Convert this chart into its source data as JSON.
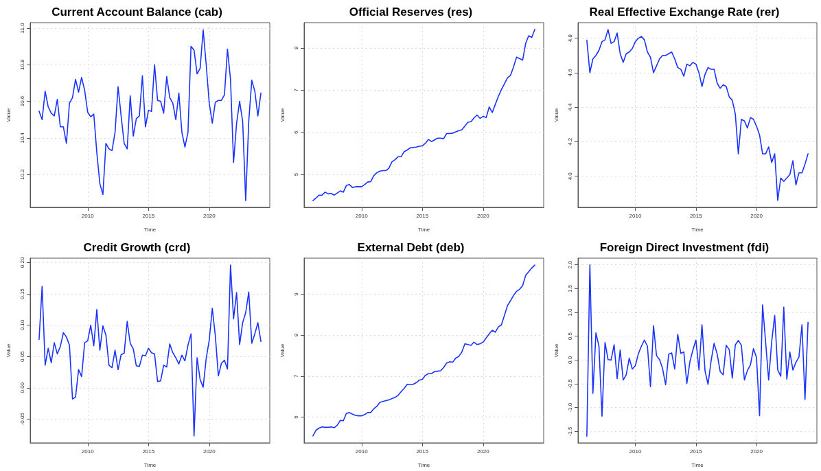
{
  "chart_data": [
    {
      "type": "line",
      "title": "Current Account Balance (cab)",
      "xlabel": "Time",
      "ylabel": "Value",
      "xlim": [
        2005.27,
        2024.98
      ],
      "xticks": [
        2010,
        2015,
        2020
      ],
      "ylim": [
        10.02,
        11.03
      ],
      "yticks": [
        10.2,
        10.4,
        10.6,
        10.8,
        {
          "value": 11,
          "label": "11.0"
        }
      ],
      "grid": true,
      "marker": "none",
      "line_style": "solid",
      "x": [
        2006,
        2006.25,
        2006.5,
        2006.75,
        2007,
        2007.25,
        2007.5,
        2007.75,
        2008,
        2008.25,
        2008.5,
        2008.75,
        2009,
        2009.25,
        2009.5,
        2009.75,
        2010,
        2010.25,
        2010.5,
        2010.75,
        2011,
        2011.25,
        2011.5,
        2011.75,
        2012,
        2012.25,
        2012.5,
        2012.75,
        2013,
        2013.25,
        2013.5,
        2013.75,
        2014,
        2014.25,
        2014.5,
        2014.75,
        2015,
        2015.25,
        2015.5,
        2015.75,
        2016,
        2016.25,
        2016.5,
        2016.75,
        2017,
        2017.25,
        2017.5,
        2017.75,
        2018,
        2018.25,
        2018.5,
        2018.75,
        2019,
        2019.25,
        2019.5,
        2019.75,
        2020,
        2020.25,
        2020.5,
        2020.75,
        2021,
        2021.25,
        2021.5,
        2021.75,
        2022,
        2022.25,
        2022.5,
        2022.75,
        2023,
        2023.25,
        2023.5,
        2023.75,
        2024,
        2024.25
      ],
      "series": [
        {
          "color": "#1a33ff",
          "values": [
            10.546,
            10.5,
            10.655,
            10.57,
            10.535,
            10.52,
            10.61,
            10.46,
            10.46,
            10.37,
            10.59,
            10.62,
            10.72,
            10.65,
            10.73,
            10.66,
            10.54,
            10.515,
            10.53,
            10.32,
            10.15,
            10.09,
            10.37,
            10.34,
            10.33,
            10.43,
            10.68,
            10.52,
            10.37,
            10.34,
            10.63,
            10.41,
            10.505,
            10.52,
            10.74,
            10.46,
            10.55,
            10.545,
            10.8,
            10.605,
            10.6,
            10.535,
            10.735,
            10.62,
            10.59,
            10.5,
            10.645,
            10.43,
            10.35,
            10.43,
            10.9,
            10.88,
            10.75,
            10.78,
            10.99,
            10.8,
            10.59,
            10.48,
            10.595,
            10.605,
            10.605,
            10.635,
            10.885,
            10.72,
            10.265,
            10.48,
            10.6,
            10.49,
            10.057,
            10.49,
            10.715,
            10.655,
            10.52,
            10.645
          ]
        }
      ]
    },
    {
      "type": "line",
      "title": "Official Reserves (res)",
      "xlabel": "Time",
      "ylabel": "Value",
      "xlim": [
        2005.27,
        2024.98
      ],
      "xticks": [
        2010,
        2015,
        2020
      ],
      "ylim": [
        4.22,
        8.6
      ],
      "yticks": [
        5,
        6,
        7,
        8
      ],
      "grid": true,
      "marker": "none",
      "line_style": "solid",
      "x": [
        2006,
        2006.25,
        2006.5,
        2006.75,
        2007,
        2007.25,
        2007.5,
        2007.75,
        2008,
        2008.25,
        2008.5,
        2008.75,
        2009,
        2009.25,
        2009.5,
        2009.75,
        2010,
        2010.25,
        2010.5,
        2010.75,
        2011,
        2011.25,
        2011.5,
        2011.75,
        2012,
        2012.25,
        2012.5,
        2012.75,
        2013,
        2013.25,
        2013.5,
        2013.75,
        2014,
        2014.25,
        2014.5,
        2014.75,
        2015,
        2015.25,
        2015.5,
        2015.75,
        2016,
        2016.25,
        2016.5,
        2016.75,
        2017,
        2017.25,
        2017.5,
        2017.75,
        2018,
        2018.25,
        2018.5,
        2018.75,
        2019,
        2019.25,
        2019.5,
        2019.75,
        2020,
        2020.25,
        2020.5,
        2020.75,
        2021,
        2021.25,
        2021.5,
        2021.75,
        2022,
        2022.25,
        2022.5,
        2022.75,
        2023,
        2023.25,
        2023.5,
        2023.75,
        2024,
        2024.25
      ],
      "series": [
        {
          "color": "#1a33ff",
          "values": [
            4.38,
            4.44,
            4.51,
            4.51,
            4.58,
            4.54,
            4.55,
            4.51,
            4.56,
            4.61,
            4.58,
            4.74,
            4.76,
            4.69,
            4.71,
            4.71,
            4.71,
            4.76,
            4.82,
            4.83,
            4.97,
            5.04,
            5.08,
            5.09,
            5.09,
            5.15,
            5.3,
            5.35,
            5.42,
            5.42,
            5.54,
            5.58,
            5.63,
            5.64,
            5.65,
            5.67,
            5.68,
            5.74,
            5.83,
            5.78,
            5.82,
            5.86,
            5.86,
            5.85,
            5.97,
            5.97,
            5.98,
            6.01,
            6.04,
            6.06,
            6.15,
            6.24,
            6.25,
            6.34,
            6.41,
            6.33,
            6.38,
            6.35,
            6.6,
            6.47,
            6.66,
            6.85,
            7.01,
            7.15,
            7.29,
            7.35,
            7.55,
            7.78,
            7.75,
            7.71,
            8.11,
            8.29,
            8.25,
            8.44
          ]
        }
      ]
    },
    {
      "type": "line",
      "title": "Real Effective Exchange Rate (rer)",
      "xlabel": "Time",
      "ylabel": "Value",
      "xlim": [
        2005.27,
        2024.98
      ],
      "xticks": [
        2010,
        2015,
        2020
      ],
      "ylim": [
        3.82,
        4.89
      ],
      "yticks": [
        {
          "value": 4,
          "label": "4.0"
        },
        4.2,
        4.4,
        4.6,
        4.8
      ],
      "grid": true,
      "marker": "none",
      "line_style": "solid",
      "x": [
        2006,
        2006.25,
        2006.5,
        2006.75,
        2007,
        2007.25,
        2007.5,
        2007.75,
        2008,
        2008.25,
        2008.5,
        2008.75,
        2009,
        2009.25,
        2009.5,
        2009.75,
        2010,
        2010.25,
        2010.5,
        2010.75,
        2011,
        2011.25,
        2011.5,
        2011.75,
        2012,
        2012.25,
        2012.5,
        2012.75,
        2013,
        2013.25,
        2013.5,
        2013.75,
        2014,
        2014.25,
        2014.5,
        2014.75,
        2015,
        2015.25,
        2015.5,
        2015.75,
        2016,
        2016.25,
        2016.5,
        2016.75,
        2017,
        2017.25,
        2017.5,
        2017.75,
        2018,
        2018.25,
        2018.5,
        2018.75,
        2019,
        2019.25,
        2019.5,
        2019.75,
        2020,
        2020.25,
        2020.5,
        2020.75,
        2021,
        2021.25,
        2021.5,
        2021.75,
        2022,
        2022.25,
        2022.5,
        2022.75,
        2023,
        2023.25,
        2023.5,
        2023.75,
        2024,
        2024.25
      ],
      "series": [
        {
          "color": "#1a33ff",
          "values": [
            4.787,
            4.6,
            4.68,
            4.7,
            4.73,
            4.78,
            4.79,
            4.85,
            4.77,
            4.78,
            4.83,
            4.71,
            4.66,
            4.71,
            4.72,
            4.74,
            4.78,
            4.8,
            4.81,
            4.79,
            4.72,
            4.69,
            4.6,
            4.64,
            4.68,
            4.7,
            4.7,
            4.71,
            4.72,
            4.68,
            4.63,
            4.62,
            4.58,
            4.65,
            4.64,
            4.66,
            4.65,
            4.6,
            4.52,
            4.59,
            4.63,
            4.62,
            4.62,
            4.54,
            4.51,
            4.53,
            4.52,
            4.46,
            4.44,
            4.36,
            4.13,
            4.33,
            4.32,
            4.28,
            4.34,
            4.33,
            4.29,
            4.24,
            4.13,
            4.13,
            4.17,
            4.08,
            4.13,
            3.86,
            3.99,
            3.97,
            3.99,
            4.01,
            4.09,
            3.95,
            4.02,
            4.02,
            4.07,
            4.13
          ]
        }
      ]
    },
    {
      "type": "line",
      "title": "Credit Growth (crd)",
      "xlabel": "Time",
      "ylabel": "Value",
      "xlim": [
        2005.27,
        2024.98
      ],
      "xticks": [
        2010,
        2015,
        2020
      ],
      "ylim": [
        -0.088,
        0.207
      ],
      "yticks": [
        -0.05,
        {
          "value": 0,
          "label": "0.00"
        },
        0.05,
        {
          "value": 0.1,
          "label": "0.10"
        },
        0.15,
        {
          "value": 0.2,
          "label": "0.20"
        }
      ],
      "grid": true,
      "marker": "none",
      "line_style": "solid",
      "x": [
        2006,
        2006.25,
        2006.5,
        2006.75,
        2007,
        2007.25,
        2007.5,
        2007.75,
        2008,
        2008.25,
        2008.5,
        2008.75,
        2009,
        2009.25,
        2009.5,
        2009.75,
        2010,
        2010.25,
        2010.5,
        2010.75,
        2011,
        2011.25,
        2011.5,
        2011.75,
        2012,
        2012.25,
        2012.5,
        2012.75,
        2013,
        2013.25,
        2013.5,
        2013.75,
        2014,
        2014.25,
        2014.5,
        2014.75,
        2015,
        2015.25,
        2015.5,
        2015.75,
        2016,
        2016.25,
        2016.5,
        2016.75,
        2017,
        2017.25,
        2017.5,
        2017.75,
        2018,
        2018.25,
        2018.5,
        2018.75,
        2019,
        2019.25,
        2019.5,
        2019.75,
        2020,
        2020.25,
        2020.5,
        2020.75,
        2021,
        2021.25,
        2021.5,
        2021.75,
        2022,
        2022.25,
        2022.5,
        2022.75,
        2023,
        2023.25,
        2023.5,
        2023.75,
        2024,
        2024.25
      ],
      "series": [
        {
          "color": "#1a33ff",
          "values": [
            0.077,
            0.162,
            0.036,
            0.063,
            0.04,
            0.072,
            0.054,
            0.066,
            0.088,
            0.081,
            0.068,
            -0.018,
            -0.015,
            0.029,
            0.018,
            0.072,
            0.075,
            0.1,
            0.067,
            0.125,
            0.06,
            0.099,
            0.084,
            0.036,
            0.032,
            0.06,
            0.029,
            0.053,
            0.055,
            0.106,
            0.071,
            0.062,
            0.035,
            0.034,
            0.052,
            0.051,
            0.063,
            0.056,
            0.054,
            0.01,
            0.011,
            0.036,
            0.033,
            0.07,
            0.056,
            0.048,
            0.038,
            0.052,
            0.043,
            0.068,
            0.086,
            -0.077,
            0.048,
            0.013,
            0.001,
            0.047,
            0.076,
            0.127,
            0.083,
            0.019,
            0.039,
            0.044,
            0.03,
            0.196,
            0.11,
            0.152,
            0.069,
            0.104,
            0.12,
            0.153,
            0.071,
            0.086,
            0.104,
            0.074
          ]
        }
      ]
    },
    {
      "type": "line",
      "title": "External Debt (deb)",
      "xlabel": "Time",
      "ylabel": "Value",
      "xlim": [
        2005.27,
        2024.98
      ],
      "xticks": [
        2010,
        2015,
        2020
      ],
      "ylim": [
        5.37,
        9.88
      ],
      "yticks": [
        6,
        7,
        8,
        9
      ],
      "grid": true,
      "marker": "none",
      "line_style": "solid",
      "x": [
        2006,
        2006.25,
        2006.5,
        2006.75,
        2007,
        2007.25,
        2007.5,
        2007.75,
        2008,
        2008.25,
        2008.5,
        2008.75,
        2009,
        2009.25,
        2009.5,
        2009.75,
        2010,
        2010.25,
        2010.5,
        2010.75,
        2011,
        2011.25,
        2011.5,
        2011.75,
        2012,
        2012.25,
        2012.5,
        2012.75,
        2013,
        2013.25,
        2013.5,
        2013.75,
        2014,
        2014.25,
        2014.5,
        2014.75,
        2015,
        2015.25,
        2015.5,
        2015.75,
        2016,
        2016.25,
        2016.5,
        2016.75,
        2017,
        2017.25,
        2017.5,
        2017.75,
        2018,
        2018.25,
        2018.5,
        2018.75,
        2019,
        2019.25,
        2019.5,
        2019.75,
        2020,
        2020.25,
        2020.5,
        2020.75,
        2021,
        2021.25,
        2021.5,
        2021.75,
        2022,
        2022.25,
        2022.5,
        2022.75,
        2023,
        2023.25,
        2023.5,
        2023.75,
        2024,
        2024.25
      ],
      "series": [
        {
          "color": "#1a33ff",
          "values": [
            5.54,
            5.68,
            5.73,
            5.76,
            5.75,
            5.75,
            5.76,
            5.74,
            5.8,
            5.92,
            5.91,
            6.09,
            6.11,
            6.07,
            6.04,
            6.03,
            6.03,
            6.06,
            6.11,
            6.11,
            6.2,
            6.26,
            6.36,
            6.38,
            6.4,
            6.42,
            6.45,
            6.48,
            6.53,
            6.62,
            6.7,
            6.8,
            6.79,
            6.8,
            6.84,
            6.9,
            6.92,
            7.02,
            7.06,
            7.06,
            7.11,
            7.12,
            7.13,
            7.21,
            7.32,
            7.35,
            7.34,
            7.44,
            7.48,
            7.59,
            7.79,
            7.77,
            7.75,
            7.83,
            7.77,
            7.79,
            7.83,
            7.93,
            8.03,
            8.12,
            8.07,
            8.2,
            8.25,
            8.48,
            8.72,
            8.84,
            8.97,
            9.07,
            9.12,
            9.21,
            9.46,
            9.55,
            9.64,
            9.71
          ]
        }
      ]
    },
    {
      "type": "line",
      "title": "Foreign Direct Investment (fdi)",
      "xlabel": "Time",
      "ylabel": "Value",
      "xlim": [
        2005.27,
        2024.98
      ],
      "xticks": [
        2010,
        2015,
        2020
      ],
      "ylim": [
        -1.74,
        2.14
      ],
      "yticks": [
        -1.5,
        {
          "value": -1,
          "label": "-1.0"
        },
        -0.5,
        {
          "value": 0,
          "label": "0.0"
        },
        0.5,
        {
          "value": 1,
          "label": "1.0"
        },
        1.5,
        {
          "value": 2,
          "label": "2.0"
        }
      ],
      "grid": true,
      "marker": "none",
      "line_style": "solid",
      "x": [
        2006,
        2006.25,
        2006.5,
        2006.75,
        2007,
        2007.25,
        2007.5,
        2007.75,
        2008,
        2008.25,
        2008.5,
        2008.75,
        2009,
        2009.25,
        2009.5,
        2009.75,
        2010,
        2010.25,
        2010.5,
        2010.75,
        2011,
        2011.25,
        2011.5,
        2011.75,
        2012,
        2012.25,
        2012.5,
        2012.75,
        2013,
        2013.25,
        2013.5,
        2013.75,
        2014,
        2014.25,
        2014.5,
        2014.75,
        2015,
        2015.25,
        2015.5,
        2015.75,
        2016,
        2016.25,
        2016.5,
        2016.75,
        2017,
        2017.25,
        2017.5,
        2017.75,
        2018,
        2018.25,
        2018.5,
        2018.75,
        2019,
        2019.25,
        2019.5,
        2019.75,
        2020,
        2020.25,
        2020.5,
        2020.75,
        2021,
        2021.25,
        2021.5,
        2021.75,
        2022,
        2022.25,
        2022.5,
        2022.75,
        2023,
        2023.25,
        2023.5,
        2023.75,
        2024,
        2024.25
      ],
      "series": [
        {
          "color": "#1a33ff",
          "values": [
            -1.6,
            2.0,
            -0.7,
            0.57,
            0.29,
            -1.18,
            0.37,
            0.01,
            0.0,
            0.32,
            -0.39,
            0.21,
            -0.42,
            -0.31,
            0.04,
            -0.19,
            -0.12,
            0.13,
            0.29,
            0.42,
            0.29,
            -0.56,
            0.72,
            0.09,
            0.01,
            -0.18,
            -0.52,
            0.12,
            0.15,
            -0.19,
            0.54,
            0.14,
            0.17,
            -0.49,
            -0.04,
            0.21,
            0.42,
            -0.21,
            0.74,
            -0.23,
            -0.51,
            -0.02,
            0.35,
            0.13,
            -0.24,
            -0.31,
            0.31,
            0.22,
            -0.38,
            0.32,
            0.41,
            0.31,
            -0.42,
            -0.22,
            -0.1,
            0.24,
            0.05,
            -1.17,
            1.16,
            0.38,
            -0.42,
            0.38,
            0.94,
            -0.21,
            -0.34,
            1.11,
            -0.4,
            0.17,
            -0.21,
            -0.05,
            0.06,
            0.74,
            -0.83,
            0.79
          ]
        }
      ]
    }
  ]
}
